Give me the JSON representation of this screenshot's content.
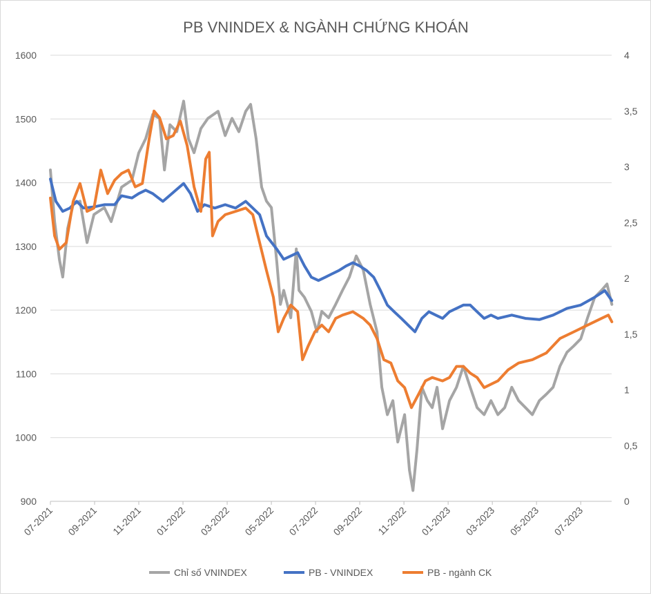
{
  "chart_data": {
    "type": "line",
    "title": "PB VNINDEX & NGÀNH CHỨNG KHOÁN",
    "x_unit": "months since 07-2021",
    "xlim": [
      0,
      25.4
    ],
    "x_ticks": [
      {
        "x": 0,
        "label": "07-2021"
      },
      {
        "x": 2,
        "label": "09-2021"
      },
      {
        "x": 4,
        "label": "11-2021"
      },
      {
        "x": 6,
        "label": "01-2022"
      },
      {
        "x": 8,
        "label": "03-2022"
      },
      {
        "x": 10,
        "label": "05-2022"
      },
      {
        "x": 12,
        "label": "07-2022"
      },
      {
        "x": 14,
        "label": "09-2022"
      },
      {
        "x": 16,
        "label": "11-2022"
      },
      {
        "x": 18,
        "label": "01-2023"
      },
      {
        "x": 20,
        "label": "03-2023"
      },
      {
        "x": 22,
        "label": "05-2023"
      },
      {
        "x": 24,
        "label": "07-2023"
      }
    ],
    "y_left": {
      "lim": [
        900,
        1600
      ],
      "ticks": [
        900,
        1000,
        1100,
        1200,
        1300,
        1400,
        1500,
        1600
      ],
      "labels": [
        "900",
        "1000",
        "1100",
        "1200",
        "1300",
        "1400",
        "1500",
        "1600"
      ]
    },
    "y_right": {
      "lim": [
        0,
        4
      ],
      "ticks": [
        0,
        0.5,
        1,
        1.5,
        2,
        2.5,
        3,
        3.5,
        4
      ],
      "labels": [
        "0",
        "0,5",
        "1",
        "1,5",
        "2",
        "2,5",
        "3",
        "3,5",
        "4"
      ]
    },
    "grid": true,
    "legend_position": "bottom",
    "series": [
      {
        "name": "Chỉ số VNINDEX",
        "axis": "left",
        "color": "#a5a5a5",
        "points": [
          [
            0,
            1420
          ],
          [
            0.19,
            1339
          ],
          [
            0.41,
            1279
          ],
          [
            0.56,
            1252
          ],
          [
            0.78,
            1328
          ],
          [
            1.03,
            1366
          ],
          [
            1.34,
            1371
          ],
          [
            1.66,
            1306
          ],
          [
            1.97,
            1350
          ],
          [
            2.44,
            1361
          ],
          [
            2.75,
            1339
          ],
          [
            3.22,
            1393
          ],
          [
            3.69,
            1404
          ],
          [
            4.0,
            1447
          ],
          [
            4.31,
            1469
          ],
          [
            4.63,
            1507
          ],
          [
            4.94,
            1501
          ],
          [
            5.16,
            1420
          ],
          [
            5.41,
            1491
          ],
          [
            5.72,
            1480
          ],
          [
            6.03,
            1528
          ],
          [
            6.25,
            1469
          ],
          [
            6.5,
            1447
          ],
          [
            6.81,
            1485
          ],
          [
            7.13,
            1501
          ],
          [
            7.59,
            1512
          ],
          [
            7.91,
            1474
          ],
          [
            8.22,
            1501
          ],
          [
            8.53,
            1480
          ],
          [
            8.84,
            1512
          ],
          [
            9.06,
            1523
          ],
          [
            9.31,
            1469
          ],
          [
            9.56,
            1393
          ],
          [
            9.78,
            1371
          ],
          [
            10.0,
            1361
          ],
          [
            10.25,
            1274
          ],
          [
            10.41,
            1209
          ],
          [
            10.56,
            1231
          ],
          [
            10.88,
            1188
          ],
          [
            11.13,
            1296
          ],
          [
            11.25,
            1231
          ],
          [
            11.5,
            1220
          ],
          [
            11.81,
            1198
          ],
          [
            12.06,
            1166
          ],
          [
            12.28,
            1198
          ],
          [
            12.59,
            1188
          ],
          [
            12.91,
            1209
          ],
          [
            13.22,
            1231
          ],
          [
            13.53,
            1252
          ],
          [
            13.84,
            1285
          ],
          [
            14.16,
            1263
          ],
          [
            14.47,
            1209
          ],
          [
            14.78,
            1166
          ],
          [
            15.0,
            1079
          ],
          [
            15.25,
            1036
          ],
          [
            15.5,
            1058
          ],
          [
            15.72,
            993
          ],
          [
            16.03,
            1036
          ],
          [
            16.25,
            949
          ],
          [
            16.41,
            917
          ],
          [
            16.59,
            981
          ],
          [
            16.81,
            1079
          ],
          [
            17.06,
            1058
          ],
          [
            17.28,
            1047
          ],
          [
            17.5,
            1079
          ],
          [
            17.75,
            1014
          ],
          [
            18.06,
            1058
          ],
          [
            18.38,
            1079
          ],
          [
            18.69,
            1112
          ],
          [
            19.0,
            1079
          ],
          [
            19.31,
            1047
          ],
          [
            19.63,
            1036
          ],
          [
            19.94,
            1058
          ],
          [
            20.25,
            1036
          ],
          [
            20.56,
            1047
          ],
          [
            20.88,
            1079
          ],
          [
            21.19,
            1058
          ],
          [
            21.5,
            1047
          ],
          [
            21.81,
            1036
          ],
          [
            22.13,
            1058
          ],
          [
            22.44,
            1068
          ],
          [
            22.75,
            1079
          ],
          [
            23.06,
            1112
          ],
          [
            23.38,
            1134
          ],
          [
            23.69,
            1144
          ],
          [
            24.0,
            1155
          ],
          [
            24.31,
            1188
          ],
          [
            24.63,
            1220
          ],
          [
            24.94,
            1231
          ],
          [
            25.19,
            1241
          ],
          [
            25.41,
            1209
          ]
        ]
      },
      {
        "name": "PB - VNINDEX",
        "axis": "right",
        "color": "#4472c4",
        "points": [
          [
            0,
            2.89
          ],
          [
            0.25,
            2.69
          ],
          [
            0.56,
            2.6
          ],
          [
            0.88,
            2.63
          ],
          [
            1.19,
            2.69
          ],
          [
            1.5,
            2.63
          ],
          [
            1.97,
            2.64
          ],
          [
            2.44,
            2.66
          ],
          [
            2.91,
            2.66
          ],
          [
            3.22,
            2.74
          ],
          [
            3.69,
            2.72
          ],
          [
            4.0,
            2.76
          ],
          [
            4.31,
            2.79
          ],
          [
            4.63,
            2.76
          ],
          [
            5.09,
            2.69
          ],
          [
            5.56,
            2.77
          ],
          [
            6.03,
            2.85
          ],
          [
            6.34,
            2.76
          ],
          [
            6.66,
            2.6
          ],
          [
            6.97,
            2.66
          ],
          [
            7.44,
            2.63
          ],
          [
            7.91,
            2.66
          ],
          [
            8.38,
            2.63
          ],
          [
            8.84,
            2.69
          ],
          [
            9.16,
            2.63
          ],
          [
            9.47,
            2.57
          ],
          [
            9.78,
            2.38
          ],
          [
            10.25,
            2.26
          ],
          [
            10.56,
            2.17
          ],
          [
            10.88,
            2.2
          ],
          [
            11.19,
            2.23
          ],
          [
            11.5,
            2.11
          ],
          [
            11.81,
            2.01
          ],
          [
            12.13,
            1.98
          ],
          [
            12.44,
            2.01
          ],
          [
            12.75,
            2.04
          ],
          [
            13.06,
            2.07
          ],
          [
            13.38,
            2.11
          ],
          [
            13.69,
            2.14
          ],
          [
            14.0,
            2.11
          ],
          [
            14.31,
            2.07
          ],
          [
            14.63,
            2.01
          ],
          [
            14.94,
            1.89
          ],
          [
            15.25,
            1.76
          ],
          [
            15.56,
            1.7
          ],
          [
            15.88,
            1.64
          ],
          [
            16.19,
            1.58
          ],
          [
            16.5,
            1.52
          ],
          [
            16.81,
            1.64
          ],
          [
            17.13,
            1.7
          ],
          [
            17.44,
            1.67
          ],
          [
            17.75,
            1.64
          ],
          [
            18.06,
            1.7
          ],
          [
            18.38,
            1.73
          ],
          [
            18.69,
            1.76
          ],
          [
            19.0,
            1.76
          ],
          [
            19.31,
            1.7
          ],
          [
            19.63,
            1.64
          ],
          [
            19.94,
            1.67
          ],
          [
            20.25,
            1.64
          ],
          [
            20.88,
            1.67
          ],
          [
            21.5,
            1.64
          ],
          [
            22.13,
            1.63
          ],
          [
            22.75,
            1.67
          ],
          [
            23.38,
            1.73
          ],
          [
            24.0,
            1.76
          ],
          [
            24.63,
            1.83
          ],
          [
            25.09,
            1.89
          ],
          [
            25.41,
            1.8
          ]
        ]
      },
      {
        "name": "PB - ngành CK",
        "axis": "right",
        "color": "#ed7d31",
        "points": [
          [
            0,
            2.72
          ],
          [
            0.19,
            2.38
          ],
          [
            0.41,
            2.26
          ],
          [
            0.72,
            2.32
          ],
          [
            1.03,
            2.69
          ],
          [
            1.34,
            2.85
          ],
          [
            1.66,
            2.6
          ],
          [
            1.97,
            2.63
          ],
          [
            2.28,
            2.97
          ],
          [
            2.59,
            2.76
          ],
          [
            2.91,
            2.88
          ],
          [
            3.22,
            2.94
          ],
          [
            3.53,
            2.97
          ],
          [
            3.84,
            2.82
          ],
          [
            4.16,
            2.85
          ],
          [
            4.47,
            3.25
          ],
          [
            4.69,
            3.5
          ],
          [
            4.94,
            3.44
          ],
          [
            5.25,
            3.25
          ],
          [
            5.56,
            3.28
          ],
          [
            5.88,
            3.41
          ],
          [
            6.19,
            3.19
          ],
          [
            6.5,
            2.82
          ],
          [
            6.81,
            2.6
          ],
          [
            7.03,
            3.07
          ],
          [
            7.19,
            3.13
          ],
          [
            7.34,
            2.38
          ],
          [
            7.59,
            2.51
          ],
          [
            7.91,
            2.57
          ],
          [
            8.38,
            2.6
          ],
          [
            8.84,
            2.63
          ],
          [
            9.16,
            2.57
          ],
          [
            9.47,
            2.32
          ],
          [
            9.78,
            2.07
          ],
          [
            10.09,
            1.83
          ],
          [
            10.31,
            1.52
          ],
          [
            10.56,
            1.64
          ],
          [
            10.88,
            1.76
          ],
          [
            11.19,
            1.7
          ],
          [
            11.41,
            1.27
          ],
          [
            11.66,
            1.39
          ],
          [
            11.97,
            1.52
          ],
          [
            12.28,
            1.58
          ],
          [
            12.59,
            1.52
          ],
          [
            12.91,
            1.64
          ],
          [
            13.22,
            1.67
          ],
          [
            13.69,
            1.7
          ],
          [
            14.16,
            1.64
          ],
          [
            14.47,
            1.58
          ],
          [
            14.78,
            1.46
          ],
          [
            15.09,
            1.27
          ],
          [
            15.41,
            1.24
          ],
          [
            15.72,
            1.08
          ],
          [
            16.03,
            1.02
          ],
          [
            16.34,
            0.84
          ],
          [
            16.66,
            0.96
          ],
          [
            16.97,
            1.08
          ],
          [
            17.28,
            1.11
          ],
          [
            17.75,
            1.08
          ],
          [
            18.06,
            1.11
          ],
          [
            18.38,
            1.21
          ],
          [
            18.69,
            1.21
          ],
          [
            19.0,
            1.15
          ],
          [
            19.31,
            1.11
          ],
          [
            19.63,
            1.02
          ],
          [
            19.94,
            1.05
          ],
          [
            20.25,
            1.08
          ],
          [
            20.72,
            1.18
          ],
          [
            21.19,
            1.24
          ],
          [
            21.81,
            1.27
          ],
          [
            22.44,
            1.33
          ],
          [
            23.06,
            1.46
          ],
          [
            23.69,
            1.52
          ],
          [
            24.31,
            1.58
          ],
          [
            24.94,
            1.64
          ],
          [
            25.25,
            1.67
          ],
          [
            25.41,
            1.61
          ]
        ]
      }
    ]
  }
}
